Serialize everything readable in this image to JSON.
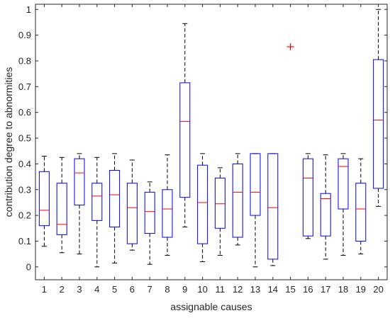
{
  "chart_data": {
    "type": "boxplot",
    "title": "",
    "xlabel": "assignable causes",
    "ylabel": "contribution degree to abnormities",
    "ylim": [
      -0.05,
      1.02
    ],
    "yticks": [
      0,
      0.1,
      0.2,
      0.3,
      0.4,
      0.5,
      0.6,
      0.7,
      0.8,
      0.9,
      1
    ],
    "ytick_labels": [
      "0",
      "0.1",
      "0.2",
      "0.3",
      "0.4",
      "0.5",
      "0.6",
      "0.7",
      "0.8",
      "0.9",
      "1"
    ],
    "categories": [
      "1",
      "2",
      "3",
      "4",
      "5",
      "6",
      "7",
      "8",
      "9",
      "10",
      "11",
      "12",
      "13",
      "14",
      "15",
      "16",
      "17",
      "18",
      "19",
      "20"
    ],
    "grid": false,
    "colors": {
      "box": "#0000ff",
      "median": "#ff0000",
      "whisker": "#000000",
      "outlier": "#ff0000",
      "axis": "#262626"
    },
    "boxes": [
      {
        "category": "1",
        "whisker_low": 0.08,
        "q1": 0.16,
        "median": 0.22,
        "q3": 0.37,
        "whisker_high": 0.43
      },
      {
        "category": "2",
        "whisker_low": 0.055,
        "q1": 0.125,
        "median": 0.165,
        "q3": 0.325,
        "whisker_high": 0.425
      },
      {
        "category": "3",
        "whisker_low": 0.05,
        "q1": 0.24,
        "median": 0.365,
        "q3": 0.42,
        "whisker_high": 0.44
      },
      {
        "category": "4",
        "whisker_low": 0.0,
        "q1": 0.18,
        "median": 0.275,
        "q3": 0.325,
        "whisker_high": 0.425
      },
      {
        "category": "5",
        "whisker_low": 0.015,
        "q1": 0.155,
        "median": 0.28,
        "q3": 0.375,
        "whisker_high": 0.44
      },
      {
        "category": "6",
        "whisker_low": 0.065,
        "q1": 0.09,
        "median": 0.23,
        "q3": 0.325,
        "whisker_high": 0.415
      },
      {
        "category": "7",
        "whisker_low": 0.01,
        "q1": 0.13,
        "median": 0.215,
        "q3": 0.29,
        "whisker_high": 0.33
      },
      {
        "category": "8",
        "whisker_low": 0.045,
        "q1": 0.115,
        "median": 0.225,
        "q3": 0.3,
        "whisker_high": 0.435
      },
      {
        "category": "9",
        "whisker_low": 0.155,
        "q1": 0.27,
        "median": 0.565,
        "q3": 0.715,
        "whisker_high": 0.945
      },
      {
        "category": "10",
        "whisker_low": 0.02,
        "q1": 0.09,
        "median": 0.25,
        "q3": 0.395,
        "whisker_high": 0.44
      },
      {
        "category": "11",
        "whisker_low": 0.045,
        "q1": 0.15,
        "median": 0.245,
        "q3": 0.345,
        "whisker_high": 0.385
      },
      {
        "category": "12",
        "whisker_low": 0.085,
        "q1": 0.115,
        "median": 0.29,
        "q3": 0.4,
        "whisker_high": 0.44
      },
      {
        "category": "13",
        "whisker_low": 0.0,
        "q1": 0.2,
        "median": 0.29,
        "q3": 0.44,
        "whisker_high": 0.44
      },
      {
        "category": "14",
        "whisker_low": 0.005,
        "q1": 0.03,
        "median": 0.23,
        "q3": 0.44,
        "whisker_high": 0.44
      },
      {
        "category": "15",
        "whisker_low": null,
        "q1": null,
        "median": null,
        "q3": null,
        "whisker_high": null,
        "outliers": [
          0.855
        ]
      },
      {
        "category": "16",
        "whisker_low": 0.11,
        "q1": 0.12,
        "median": 0.345,
        "q3": 0.42,
        "whisker_high": 0.44
      },
      {
        "category": "17",
        "whisker_low": 0.03,
        "q1": 0.12,
        "median": 0.265,
        "q3": 0.285,
        "whisker_high": 0.435
      },
      {
        "category": "18",
        "whisker_low": 0.045,
        "q1": 0.225,
        "median": 0.39,
        "q3": 0.42,
        "whisker_high": 0.44
      },
      {
        "category": "19",
        "whisker_low": 0.05,
        "q1": 0.1,
        "median": 0.225,
        "q3": 0.325,
        "whisker_high": 0.42
      },
      {
        "category": "20",
        "whisker_low": 0.235,
        "q1": 0.305,
        "median": 0.57,
        "q3": 0.805,
        "whisker_high": 1.0
      }
    ]
  }
}
